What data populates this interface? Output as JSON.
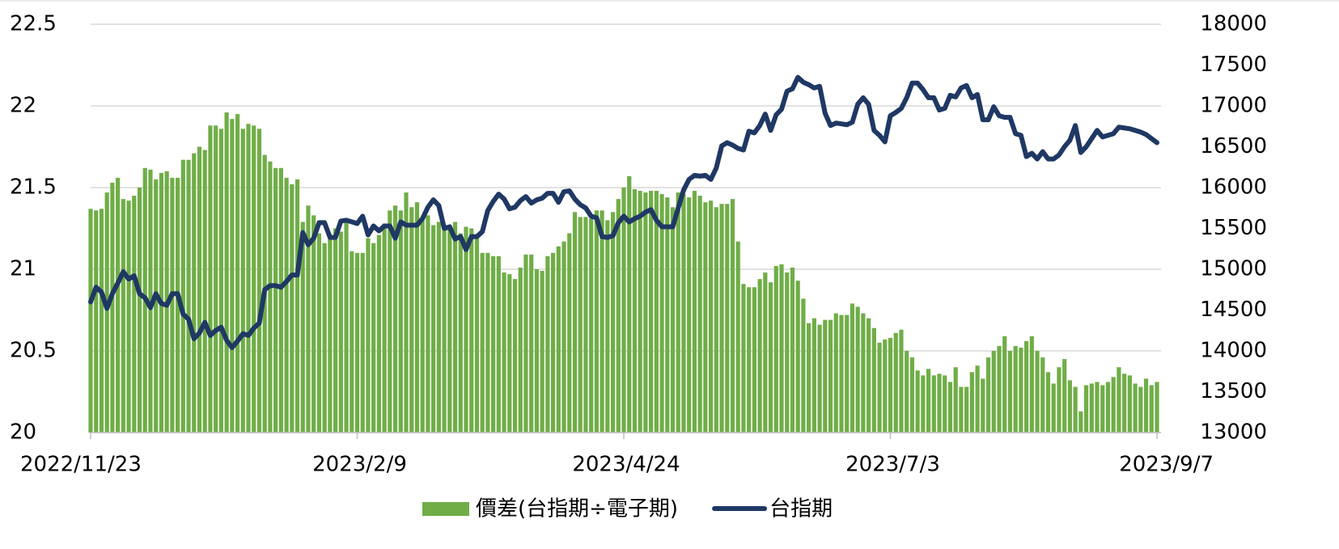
{
  "chart_data": {
    "type": "bar_line",
    "categories": [
      "2022/11/23",
      null,
      null,
      null,
      null,
      null,
      null,
      null,
      null,
      null,
      null,
      null,
      null,
      null,
      null,
      null,
      null,
      null,
      null,
      null,
      null,
      null,
      null,
      null,
      null,
      null,
      null,
      null,
      null,
      null,
      null,
      null,
      null,
      null,
      null,
      null,
      null,
      null,
      null,
      null,
      null,
      null,
      null,
      null,
      null,
      null,
      null,
      null,
      null,
      "2023/2/9",
      null,
      null,
      null,
      null,
      null,
      null,
      null,
      null,
      null,
      null,
      null,
      null,
      null,
      null,
      null,
      null,
      null,
      null,
      null,
      null,
      null,
      null,
      null,
      null,
      null,
      null,
      null,
      null,
      null,
      null,
      null,
      null,
      null,
      null,
      null,
      null,
      null,
      null,
      null,
      null,
      null,
      null,
      null,
      null,
      null,
      null,
      null,
      null,
      "2023/4/24",
      null,
      null,
      null,
      null,
      null,
      null,
      null,
      null,
      null,
      null,
      null,
      null,
      null,
      null,
      null,
      null,
      null,
      null,
      null,
      null,
      null,
      null,
      null,
      null,
      null,
      null,
      null,
      null,
      null,
      null,
      null,
      null,
      null,
      null,
      null,
      null,
      null,
      null,
      null,
      null,
      null,
      null,
      null,
      null,
      null,
      null,
      null,
      null,
      "2023/7/3",
      null,
      null,
      null,
      null,
      null,
      null,
      null,
      null,
      null,
      null,
      null,
      null,
      null,
      null,
      null,
      null,
      null,
      null,
      null,
      null,
      null,
      null,
      null,
      null,
      null,
      null,
      null,
      null,
      null,
      null,
      null,
      null,
      null,
      null,
      null,
      null,
      null,
      null,
      null,
      null,
      null,
      null,
      null,
      null,
      null,
      null,
      null,
      null,
      "2023/9/7"
    ],
    "series": [
      {
        "name": "價差(台指期÷電子期)",
        "type": "bar",
        "color": "#70ad47",
        "axis": "y",
        "values": [
          21.37,
          21.36,
          21.37,
          21.47,
          21.53,
          21.56,
          21.43,
          21.42,
          21.45,
          21.5,
          21.62,
          21.61,
          21.55,
          21.59,
          21.6,
          21.56,
          21.56,
          21.67,
          21.67,
          21.71,
          21.75,
          21.73,
          21.88,
          21.88,
          21.86,
          21.96,
          21.92,
          21.95,
          21.86,
          21.89,
          21.88,
          21.86,
          21.7,
          21.66,
          21.62,
          21.62,
          21.56,
          21.52,
          21.55,
          21.29,
          21.39,
          21.33,
          21.22,
          21.16,
          21.2,
          21.25,
          21.23,
          21.29,
          21.11,
          21.1,
          21.1,
          21.19,
          21.16,
          21.21,
          21.28,
          21.36,
          21.39,
          21.36,
          21.47,
          21.38,
          21.41,
          21.3,
          21.33,
          21.27,
          21.29,
          21.26,
          21.27,
          21.29,
          21.22,
          21.26,
          21.25,
          21.21,
          21.1,
          21.1,
          21.08,
          21.08,
          20.98,
          20.97,
          20.94,
          21.01,
          21.09,
          21.09,
          21.0,
          20.99,
          21.08,
          21.1,
          21.14,
          21.17,
          21.22,
          21.35,
          21.32,
          21.32,
          21.31,
          21.36,
          21.36,
          21.3,
          21.35,
          21.43,
          21.5,
          21.57,
          21.49,
          21.48,
          21.47,
          21.48,
          21.48,
          21.46,
          21.44,
          21.38,
          21.47,
          21.46,
          21.44,
          21.48,
          21.45,
          21.41,
          21.42,
          21.38,
          21.4,
          21.4,
          21.43,
          21.17,
          20.91,
          20.89,
          20.89,
          20.94,
          20.98,
          20.92,
          21.02,
          21.03,
          20.98,
          21.01,
          20.93,
          20.82,
          20.67,
          20.7,
          20.66,
          20.69,
          20.69,
          20.73,
          20.72,
          20.72,
          20.79,
          20.77,
          20.73,
          20.7,
          20.64,
          20.55,
          20.57,
          20.58,
          20.61,
          20.63,
          20.5,
          20.46,
          20.38,
          20.35,
          20.39,
          20.35,
          20.36,
          20.35,
          20.31,
          20.4,
          20.28,
          20.28,
          20.37,
          20.41,
          20.33,
          20.46,
          20.5,
          20.53,
          20.59,
          20.5,
          20.53,
          20.52,
          20.56,
          20.59,
          20.5,
          20.46,
          20.37,
          20.3,
          20.4,
          20.45,
          20.32,
          20.28,
          20.13,
          20.29,
          20.3,
          20.31,
          20.29,
          20.31,
          20.34,
          20.4,
          20.36,
          20.35,
          20.3,
          20.28,
          20.33,
          20.29,
          20.31
        ]
      },
      {
        "name": "台指期",
        "type": "line",
        "color": "#1f3864",
        "axis": "y2",
        "values": [
          14600,
          14780,
          14720,
          14520,
          14700,
          14830,
          14970,
          14880,
          14920,
          14700,
          14650,
          14530,
          14700,
          14580,
          14560,
          14700,
          14700,
          14450,
          14390,
          14150,
          14220,
          14350,
          14190,
          14250,
          14290,
          14130,
          14040,
          14120,
          14210,
          14190,
          14280,
          14340,
          14750,
          14800,
          14800,
          14780,
          14850,
          14930,
          14930,
          15450,
          15300,
          15380,
          15570,
          15570,
          15390,
          15390,
          15590,
          15600,
          15580,
          15560,
          15650,
          15420,
          15530,
          15470,
          15530,
          15530,
          15380,
          15580,
          15540,
          15540,
          15540,
          15620,
          15760,
          15850,
          15780,
          15500,
          15520,
          15370,
          15400,
          15240,
          15400,
          15400,
          15460,
          15720,
          15830,
          15920,
          15860,
          15740,
          15760,
          15840,
          15890,
          15810,
          15850,
          15870,
          15930,
          15930,
          15820,
          15950,
          15960,
          15860,
          15790,
          15750,
          15650,
          15630,
          15400,
          15390,
          15410,
          15570,
          15650,
          15580,
          15620,
          15650,
          15700,
          15730,
          15600,
          15520,
          15520,
          15520,
          15750,
          15970,
          16100,
          16150,
          16140,
          16150,
          16100,
          16240,
          16510,
          16550,
          16520,
          16480,
          16460,
          16690,
          16670,
          16760,
          16900,
          16700,
          16890,
          16960,
          17180,
          17210,
          17350,
          17290,
          17260,
          17220,
          17240,
          16910,
          16760,
          16790,
          16780,
          16770,
          16800,
          17020,
          17100,
          17020,
          16700,
          16640,
          16560,
          16880,
          16920,
          16970,
          17100,
          17280,
          17280,
          17200,
          17100,
          17100,
          16950,
          16970,
          17130,
          17110,
          17220,
          17250,
          17100,
          17140,
          16830,
          16830,
          16990,
          16880,
          16860,
          16860,
          16660,
          16640,
          16380,
          16420,
          16350,
          16440,
          16350,
          16350,
          16400,
          16500,
          16580,
          16760,
          16430,
          16500,
          16600,
          16700,
          16620,
          16640,
          16660,
          16740,
          16730,
          16720,
          16700,
          16680,
          16650,
          16600,
          16550
        ]
      }
    ],
    "ylim": [
      20,
      22.5
    ],
    "yticks": [
      20,
      20.5,
      21,
      21.5,
      22,
      22.5
    ],
    "y2lim": [
      13000,
      18000
    ],
    "y2ticks": [
      13000,
      13500,
      14000,
      14500,
      15000,
      15500,
      16000,
      16500,
      17000,
      17500,
      18000
    ],
    "grid": true,
    "legend": "bottom"
  }
}
